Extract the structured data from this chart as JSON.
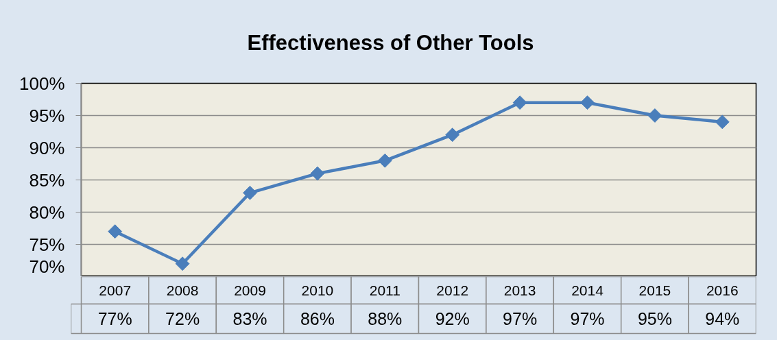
{
  "chart_data": {
    "type": "line",
    "title": "Effectiveness of Other Tools",
    "categories": [
      "2007",
      "2008",
      "2009",
      "2010",
      "2011",
      "2012",
      "2013",
      "2014",
      "2015",
      "2016"
    ],
    "values": [
      77,
      72,
      83,
      86,
      88,
      92,
      97,
      97,
      95,
      94
    ],
    "value_labels": [
      "77%",
      "72%",
      "83%",
      "86%",
      "88%",
      "92%",
      "97%",
      "97%",
      "95%",
      "94%"
    ],
    "color": "#4a7ebb",
    "ylim": [
      70,
      100
    ],
    "yticks": [
      {
        "value": 70,
        "label": "70%"
      },
      {
        "value": 75,
        "label": "75%"
      },
      {
        "value": 80,
        "label": "80%"
      },
      {
        "value": 85,
        "label": "85%"
      },
      {
        "value": 90,
        "label": "90%"
      },
      {
        "value": 95,
        "label": "95%"
      },
      {
        "value": 100,
        "label": "100%"
      }
    ],
    "grid": "y",
    "marker": "diamond",
    "line_style": "solid"
  }
}
